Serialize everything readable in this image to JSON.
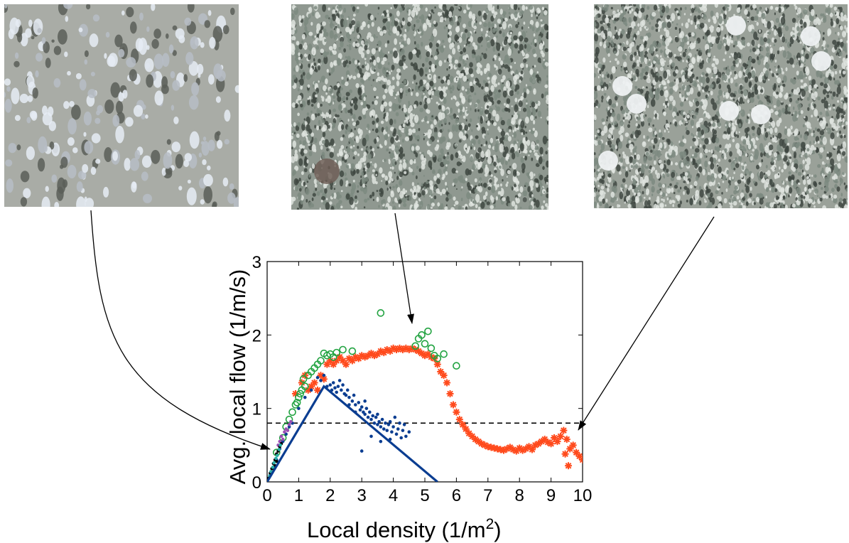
{
  "photos": [
    {
      "label": "low-density-crowd-photo",
      "tone": "#a9aca6"
    },
    {
      "label": "medium-density-crowd-photo",
      "tone": "#8f9890"
    },
    {
      "label": "high-density-crowd-photo",
      "tone": "#9aa199"
    }
  ],
  "chart_data": {
    "type": "scatter",
    "xlabel": "Local density (1/m",
    "xlabel_sup": "2",
    "xlabel_end": ")",
    "ylabel": "Avg. local flow (1/m/s)",
    "xlim": [
      0,
      10
    ],
    "ylim": [
      0,
      3
    ],
    "xticks": [
      "0",
      "1",
      "2",
      "3",
      "4",
      "5",
      "6",
      "7",
      "8",
      "9",
      "10"
    ],
    "yticks": [
      "0",
      "1",
      "2",
      "3"
    ],
    "grid": false,
    "reference_line": {
      "y": 0.8,
      "style": "dashed",
      "color": "#000000"
    },
    "fit_line": {
      "color": "#0a3d91",
      "points": [
        [
          0,
          0
        ],
        [
          1.8,
          1.3
        ],
        [
          5.4,
          0
        ]
      ]
    },
    "series": [
      {
        "marker": "star",
        "color": "#ff4a1c",
        "points": [
          [
            0.9,
            1.2
          ],
          [
            1.1,
            1.35
          ],
          [
            1.2,
            1.45
          ],
          [
            1.3,
            1.25
          ],
          [
            1.4,
            1.3
          ],
          [
            1.5,
            1.35
          ],
          [
            1.6,
            1.25
          ],
          [
            1.7,
            1.45
          ],
          [
            1.8,
            1.4
          ],
          [
            1.9,
            1.6
          ],
          [
            2.0,
            1.65
          ],
          [
            2.1,
            1.6
          ],
          [
            2.2,
            1.65
          ],
          [
            2.3,
            1.7
          ],
          [
            2.4,
            1.65
          ],
          [
            2.5,
            1.6
          ],
          [
            2.6,
            1.68
          ],
          [
            2.7,
            1.65
          ],
          [
            2.8,
            1.7
          ],
          [
            2.9,
            1.68
          ],
          [
            3.0,
            1.72
          ],
          [
            3.1,
            1.7
          ],
          [
            3.2,
            1.72
          ],
          [
            3.3,
            1.75
          ],
          [
            3.4,
            1.72
          ],
          [
            3.5,
            1.74
          ],
          [
            3.6,
            1.78
          ],
          [
            3.7,
            1.76
          ],
          [
            3.8,
            1.8
          ],
          [
            3.9,
            1.78
          ],
          [
            4.0,
            1.82
          ],
          [
            4.1,
            1.8
          ],
          [
            4.2,
            1.82
          ],
          [
            4.3,
            1.8
          ],
          [
            4.4,
            1.82
          ],
          [
            4.5,
            1.8
          ],
          [
            4.6,
            1.82
          ],
          [
            4.7,
            1.8
          ],
          [
            4.8,
            1.78
          ],
          [
            4.9,
            1.75
          ],
          [
            5.0,
            1.72
          ],
          [
            5.1,
            1.74
          ],
          [
            5.2,
            1.7
          ],
          [
            5.3,
            1.68
          ],
          [
            5.4,
            1.6
          ],
          [
            5.5,
            1.5
          ],
          [
            5.6,
            1.45
          ],
          [
            5.7,
            1.35
          ],
          [
            5.8,
            1.2
          ],
          [
            5.9,
            1.05
          ],
          [
            6.0,
            0.95
          ],
          [
            6.1,
            0.85
          ],
          [
            6.2,
            0.78
          ],
          [
            6.3,
            0.72
          ],
          [
            6.4,
            0.66
          ],
          [
            6.5,
            0.62
          ],
          [
            6.6,
            0.58
          ],
          [
            6.7,
            0.55
          ],
          [
            6.8,
            0.52
          ],
          [
            6.9,
            0.5
          ],
          [
            7.0,
            0.48
          ],
          [
            7.1,
            0.47
          ],
          [
            7.2,
            0.46
          ],
          [
            7.3,
            0.45
          ],
          [
            7.4,
            0.44
          ],
          [
            7.5,
            0.43
          ],
          [
            7.6,
            0.45
          ],
          [
            7.7,
            0.47
          ],
          [
            7.8,
            0.44
          ],
          [
            7.9,
            0.42
          ],
          [
            8.0,
            0.46
          ],
          [
            8.1,
            0.43
          ],
          [
            8.2,
            0.45
          ],
          [
            8.3,
            0.48
          ],
          [
            8.4,
            0.44
          ],
          [
            8.5,
            0.5
          ],
          [
            8.6,
            0.52
          ],
          [
            8.7,
            0.55
          ],
          [
            8.8,
            0.58
          ],
          [
            8.9,
            0.54
          ],
          [
            9.0,
            0.52
          ],
          [
            9.1,
            0.6
          ],
          [
            9.2,
            0.55
          ],
          [
            9.3,
            0.62
          ],
          [
            9.4,
            0.7
          ],
          [
            9.5,
            0.58
          ],
          [
            9.6,
            0.45
          ],
          [
            9.7,
            0.5
          ],
          [
            9.8,
            0.4
          ],
          [
            9.9,
            0.35
          ],
          [
            10.0,
            0.3
          ],
          [
            9.55,
            0.22
          ],
          [
            9.45,
            0.38
          ]
        ]
      },
      {
        "marker": "circle",
        "color": "#22a341",
        "points": [
          [
            0.3,
            0.4
          ],
          [
            0.5,
            0.6
          ],
          [
            0.6,
            0.75
          ],
          [
            0.7,
            0.85
          ],
          [
            0.8,
            0.95
          ],
          [
            0.9,
            1.05
          ],
          [
            1.0,
            1.15
          ],
          [
            1.1,
            1.25
          ],
          [
            1.15,
            1.4
          ],
          [
            1.2,
            1.3
          ],
          [
            1.3,
            1.45
          ],
          [
            1.4,
            1.5
          ],
          [
            1.5,
            1.55
          ],
          [
            1.6,
            1.6
          ],
          [
            1.7,
            1.65
          ],
          [
            1.8,
            1.75
          ],
          [
            1.9,
            1.72
          ],
          [
            2.0,
            1.74
          ],
          [
            2.1,
            1.7
          ],
          [
            2.2,
            1.76
          ],
          [
            2.4,
            1.8
          ],
          [
            2.7,
            1.78
          ],
          [
            3.6,
            2.3
          ],
          [
            4.8,
            1.95
          ],
          [
            4.9,
            2.0
          ],
          [
            5.0,
            1.88
          ],
          [
            5.1,
            2.05
          ],
          [
            5.2,
            1.82
          ],
          [
            5.3,
            1.72
          ],
          [
            5.4,
            1.68
          ],
          [
            5.6,
            1.74
          ],
          [
            6.0,
            1.58
          ],
          [
            4.7,
            1.85
          ],
          [
            1.05,
            1.2
          ],
          [
            0.95,
            1.08
          ]
        ]
      },
      {
        "marker": "dot",
        "color": "#0a3d91",
        "points": [
          [
            1.6,
            1.42
          ],
          [
            1.7,
            1.38
          ],
          [
            1.8,
            1.45
          ],
          [
            1.9,
            1.3
          ],
          [
            2.0,
            1.32
          ],
          [
            2.05,
            1.25
          ],
          [
            2.1,
            1.35
          ],
          [
            2.15,
            1.28
          ],
          [
            2.2,
            1.22
          ],
          [
            2.25,
            1.3
          ],
          [
            2.3,
            1.38
          ],
          [
            2.35,
            1.25
          ],
          [
            2.4,
            1.32
          ],
          [
            2.45,
            1.2
          ],
          [
            2.5,
            1.18
          ],
          [
            2.55,
            1.25
          ],
          [
            2.6,
            1.15
          ],
          [
            2.7,
            1.1
          ],
          [
            2.75,
            1.18
          ],
          [
            2.8,
            1.05
          ],
          [
            2.9,
            1.08
          ],
          [
            2.95,
            0.98
          ],
          [
            3.0,
            1.02
          ],
          [
            3.05,
            0.95
          ],
          [
            3.1,
            0.92
          ],
          [
            3.15,
            1.0
          ],
          [
            3.2,
            0.88
          ],
          [
            3.25,
            0.95
          ],
          [
            3.3,
            0.85
          ],
          [
            3.35,
            0.9
          ],
          [
            3.4,
            0.8
          ],
          [
            3.45,
            0.88
          ],
          [
            3.5,
            0.78
          ],
          [
            3.55,
            0.82
          ],
          [
            3.6,
            0.75
          ],
          [
            3.65,
            0.85
          ],
          [
            3.7,
            0.72
          ],
          [
            3.75,
            0.8
          ],
          [
            3.8,
            0.7
          ],
          [
            3.85,
            0.78
          ],
          [
            3.9,
            0.82
          ],
          [
            3.95,
            0.68
          ],
          [
            4.0,
            0.75
          ],
          [
            4.05,
            0.88
          ],
          [
            4.1,
            0.65
          ],
          [
            4.15,
            0.72
          ],
          [
            4.2,
            0.8
          ],
          [
            4.25,
            0.6
          ],
          [
            4.3,
            0.7
          ],
          [
            4.35,
            0.78
          ],
          [
            4.4,
            0.62
          ],
          [
            4.5,
            0.68
          ],
          [
            3.6,
            0.55
          ],
          [
            3.0,
            0.42
          ],
          [
            3.3,
            0.62
          ],
          [
            3.9,
            0.58
          ],
          [
            2.8,
            0.95
          ],
          [
            2.6,
            1.05
          ],
          [
            3.1,
            1.1
          ],
          [
            3.5,
            0.92
          ],
          [
            0.1,
            0.1
          ],
          [
            0.2,
            0.2
          ],
          [
            0.3,
            0.3
          ],
          [
            0.4,
            0.45
          ],
          [
            0.5,
            0.55
          ],
          [
            0.6,
            0.65
          ],
          [
            0.7,
            0.75
          ],
          [
            0.8,
            0.8
          ],
          [
            1.0,
            1.0
          ],
          [
            1.2,
            1.15
          ],
          [
            1.4,
            1.25
          ]
        ]
      },
      {
        "marker": "dot",
        "color": "#9a4fb3",
        "points": [
          [
            0.35,
            0.5
          ],
          [
            0.4,
            0.55
          ],
          [
            0.45,
            0.62
          ],
          [
            0.5,
            0.58
          ],
          [
            0.55,
            0.68
          ],
          [
            0.6,
            0.72
          ],
          [
            0.65,
            0.7
          ],
          [
            0.7,
            0.78
          ],
          [
            0.75,
            0.82
          ]
        ]
      },
      {
        "marker": "dot",
        "color": "#000000",
        "points": [
          [
            0.05,
            0.05
          ],
          [
            0.1,
            0.12
          ],
          [
            0.15,
            0.18
          ],
          [
            0.2,
            0.25
          ],
          [
            0.25,
            0.3
          ],
          [
            0.3,
            0.38
          ],
          [
            0.35,
            0.42
          ],
          [
            0.4,
            0.48
          ],
          [
            0.45,
            0.52
          ],
          [
            0.2,
            0.18
          ],
          [
            0.25,
            0.22
          ],
          [
            0.3,
            0.28
          ]
        ]
      },
      {
        "marker": "dot",
        "color": "#2bb0a8",
        "points": [
          [
            0.08,
            0.08
          ],
          [
            0.12,
            0.14
          ],
          [
            0.18,
            0.2
          ],
          [
            0.22,
            0.26
          ],
          [
            0.28,
            0.32
          ],
          [
            0.32,
            0.36
          ],
          [
            0.38,
            0.44
          ],
          [
            0.42,
            0.5
          ]
        ]
      }
    ]
  }
}
